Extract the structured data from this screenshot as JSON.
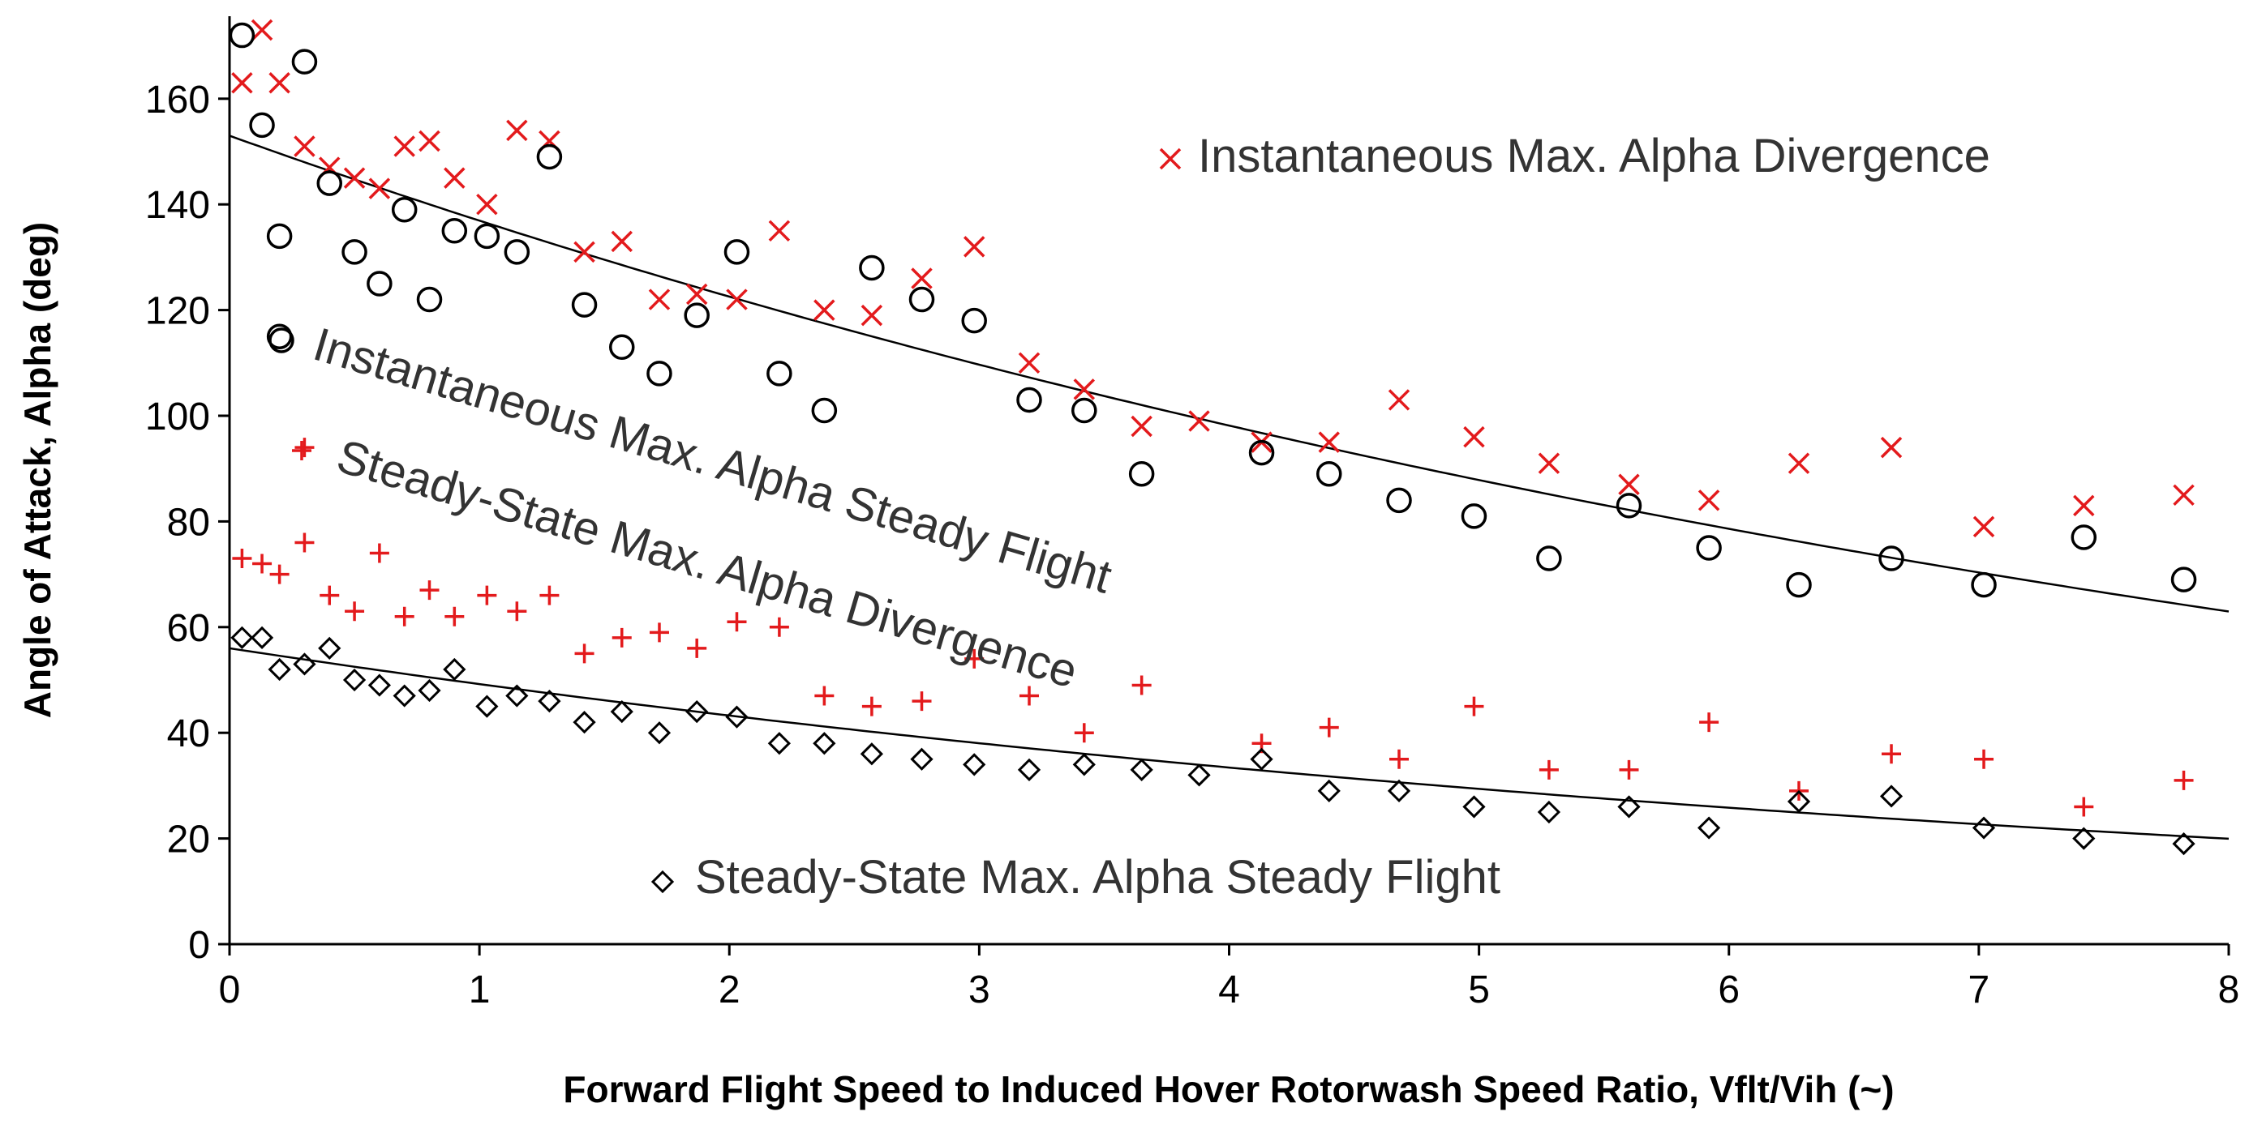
{
  "chart_data": {
    "type": "scatter",
    "xlabel": "Forward Flight Speed to Induced Hover Rotorwash Speed Ratio, Vflt/Vih (~)",
    "ylabel": "Angle of Attack, Alpha (deg)",
    "xlim": [
      0,
      8
    ],
    "ylim": [
      0,
      175
    ],
    "x_ticks": [
      "0",
      "1",
      "2",
      "3",
      "4",
      "5",
      "6",
      "7",
      "8"
    ],
    "y_ticks": [
      "0",
      "20",
      "40",
      "60",
      "80",
      "100",
      "120",
      "140",
      "160"
    ],
    "grid": false,
    "series": [
      {
        "name": "Instantaneous Max. Alpha Divergence",
        "marker": "x",
        "color": "#e31a1c",
        "x": [
          0.05,
          0.13,
          0.2,
          0.3,
          0.4,
          0.5,
          0.6,
          0.7,
          0.8,
          0.9,
          1.03,
          1.15,
          1.28,
          1.42,
          1.57,
          1.72,
          1.87,
          2.03,
          2.2,
          2.38,
          2.57,
          2.77,
          2.98,
          3.2,
          3.42,
          3.65,
          3.88,
          4.13,
          4.4,
          4.68,
          4.98,
          5.28,
          5.6,
          5.92,
          6.28,
          6.65,
          7.02,
          7.42,
          7.82
        ],
        "y": [
          163,
          173,
          163,
          151,
          147,
          145,
          143,
          151,
          152,
          145,
          140,
          154,
          152,
          131,
          133,
          122,
          123,
          122,
          135,
          120,
          119,
          126,
          132,
          110,
          105,
          98,
          99,
          95,
          95,
          103,
          96,
          91,
          87,
          84,
          91,
          94,
          79,
          83,
          85
        ]
      },
      {
        "name": "Instantaneous Max. Alpha Steady Flight",
        "marker": "circle",
        "color": "#000000",
        "x": [
          0.05,
          0.13,
          0.2,
          0.2,
          0.3,
          0.4,
          0.5,
          0.6,
          0.7,
          0.8,
          0.9,
          1.03,
          1.15,
          1.28,
          1.42,
          1.57,
          1.72,
          1.87,
          2.03,
          2.2,
          2.38,
          2.57,
          2.77,
          2.98,
          3.2,
          3.42,
          3.65,
          4.13,
          4.4,
          4.68,
          4.98,
          5.28,
          5.6,
          5.92,
          6.28,
          6.65,
          7.02,
          7.42,
          7.82
        ],
        "y": [
          172,
          155,
          134,
          115,
          167,
          144,
          131,
          125,
          139,
          122,
          135,
          134,
          131,
          149,
          121,
          113,
          108,
          119,
          131,
          108,
          101,
          128,
          122,
          118,
          103,
          101,
          89,
          93,
          89,
          84,
          81,
          73,
          83,
          75,
          68,
          73,
          68,
          77,
          69
        ]
      },
      {
        "name": "Steady-State Max. Alpha Divergence",
        "marker": "plus",
        "color": "#e31a1c",
        "x": [
          0.05,
          0.13,
          0.2,
          0.3,
          0.3,
          0.4,
          0.5,
          0.6,
          0.7,
          0.8,
          0.9,
          1.03,
          1.15,
          1.28,
          1.42,
          1.57,
          1.72,
          1.87,
          2.03,
          2.2,
          2.38,
          2.57,
          2.77,
          2.98,
          3.2,
          3.42,
          3.65,
          4.13,
          4.4,
          4.68,
          4.98,
          5.28,
          5.6,
          5.92,
          6.28,
          6.65,
          7.02,
          7.42,
          7.82
        ],
        "y": [
          73,
          72,
          70,
          94,
          76,
          66,
          63,
          74,
          62,
          67,
          62,
          66,
          63,
          66,
          55,
          58,
          59,
          56,
          61,
          60,
          47,
          45,
          46,
          54,
          47,
          40,
          49,
          38,
          41,
          35,
          45,
          33,
          33,
          42,
          29,
          36,
          35,
          26,
          31
        ]
      },
      {
        "name": "Steady-State Max. Alpha Steady Flight",
        "marker": "diamond",
        "color": "#000000",
        "x": [
          0.05,
          0.13,
          0.2,
          0.3,
          0.4,
          0.5,
          0.6,
          0.7,
          0.8,
          0.9,
          1.03,
          1.15,
          1.28,
          1.42,
          1.57,
          1.72,
          1.87,
          2.03,
          2.2,
          2.38,
          2.57,
          2.77,
          2.98,
          3.2,
          3.42,
          3.65,
          3.88,
          4.13,
          4.4,
          4.68,
          4.98,
          5.28,
          5.6,
          5.92,
          6.28,
          6.65,
          7.02,
          7.42,
          7.82
        ],
        "y": [
          58,
          58,
          52,
          53,
          56,
          50,
          49,
          47,
          48,
          52,
          45,
          47,
          46,
          42,
          44,
          40,
          44,
          43,
          38,
          38,
          36,
          35,
          34,
          33,
          34,
          33,
          32,
          35,
          29,
          29,
          26,
          25,
          26,
          22,
          27,
          28,
          22,
          20,
          19
        ]
      }
    ],
    "trendlines": [
      {
        "name": "Instantaneous Max. Alpha Steady Flight fit",
        "type": "exponential",
        "a": 153,
        "b": -0.111,
        "color": "#000000"
      },
      {
        "name": "Steady-State Max. Alpha Steady Flight fit",
        "type": "exponential",
        "a": 56,
        "b": -0.129,
        "color": "#000000"
      }
    ],
    "annotations": [
      {
        "text": "Instantaneous Max. Alpha Divergence",
        "marker": "x",
        "color": "#e31a1c"
      },
      {
        "text": "Instantaneous Max. Alpha Steady Flight",
        "marker": "circle",
        "color": "#000000"
      },
      {
        "text": "Steady-State Max. Alpha Divergence",
        "marker": "plus",
        "color": "#e31a1c"
      },
      {
        "text": "Steady-State Max. Alpha Steady Flight",
        "marker": "diamond",
        "color": "#000000"
      }
    ]
  }
}
